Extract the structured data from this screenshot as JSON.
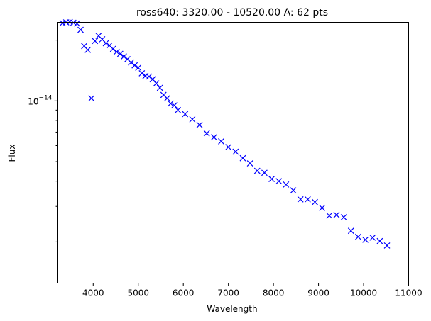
{
  "chart_data": {
    "type": "scatter",
    "title": "ross640: 3320.00 - 10520.00 A: 62 pts",
    "xlabel": "Wavelength",
    "ylabel": "Flux",
    "xlim": [
      3200,
      11000
    ],
    "ylim": [
      1.25e-15,
      2.45e-14
    ],
    "yscale": "log",
    "grid": false,
    "legend": "none",
    "marker": "x",
    "color": "#0000ff",
    "x_ticks": [
      4000,
      5000,
      6000,
      7000,
      8000,
      9000,
      10000,
      11000
    ],
    "x_tick_labels": [
      "4000",
      "5000",
      "6000",
      "7000",
      "8000",
      "9000",
      "10000",
      "11000"
    ],
    "y_major_ticks": [
      1e-14
    ],
    "y_tick_label_base": "10",
    "y_tick_label_exp": "−14",
    "y_minor_ticks": [
      2e-15,
      3e-15,
      4e-15,
      5e-15,
      6e-15,
      7e-15,
      8e-15,
      9e-15,
      2e-14
    ],
    "series": [
      {
        "x": [
          3320,
          3400,
          3480,
          3560,
          3640,
          3720,
          3800,
          3880,
          3960,
          4040,
          4120,
          4200,
          4280,
          4360,
          4440,
          4520,
          4600,
          4680,
          4760,
          4840,
          4920,
          5000,
          5080,
          5160,
          5240,
          5320,
          5400,
          5480,
          5560,
          5640,
          5720,
          5800,
          5880,
          6040,
          6200,
          6360,
          6520,
          6680,
          6840,
          7000,
          7160,
          7320,
          7480,
          7640,
          7800,
          7960,
          8120,
          8280,
          8440,
          8600,
          8760,
          8920,
          9080,
          9240,
          9400,
          9560,
          9720,
          9880,
          10040,
          10200,
          10360,
          10520
        ],
        "y": [
          2.43e-14,
          2.45e-14,
          2.46e-14,
          2.44e-14,
          2.42e-14,
          2.25e-14,
          1.87e-14,
          1.79e-14,
          1.03e-14,
          1.98e-14,
          2.1e-14,
          2.02e-14,
          1.93e-14,
          1.88e-14,
          1.81e-14,
          1.75e-14,
          1.71e-14,
          1.66e-14,
          1.61e-14,
          1.55e-14,
          1.5e-14,
          1.46e-14,
          1.37e-14,
          1.33e-14,
          1.32e-14,
          1.28e-14,
          1.22e-14,
          1.16e-14,
          1.07e-14,
          1.03e-14,
          9.7e-15,
          9.5e-15,
          9e-15,
          8.6e-15,
          8.1e-15,
          7.6e-15,
          6.9e-15,
          6.6e-15,
          6.3e-15,
          5.9e-15,
          5.6e-15,
          5.2e-15,
          4.9e-15,
          4.5e-15,
          4.4e-15,
          4.1e-15,
          4e-15,
          3.85e-15,
          3.6e-15,
          3.25e-15,
          3.25e-15,
          3.15e-15,
          2.95e-15,
          2.7e-15,
          2.72e-15,
          2.65e-15,
          2.27e-15,
          2.12e-15,
          2.05e-15,
          2.1e-15,
          2.02e-15,
          1.92e-15
        ]
      }
    ]
  }
}
